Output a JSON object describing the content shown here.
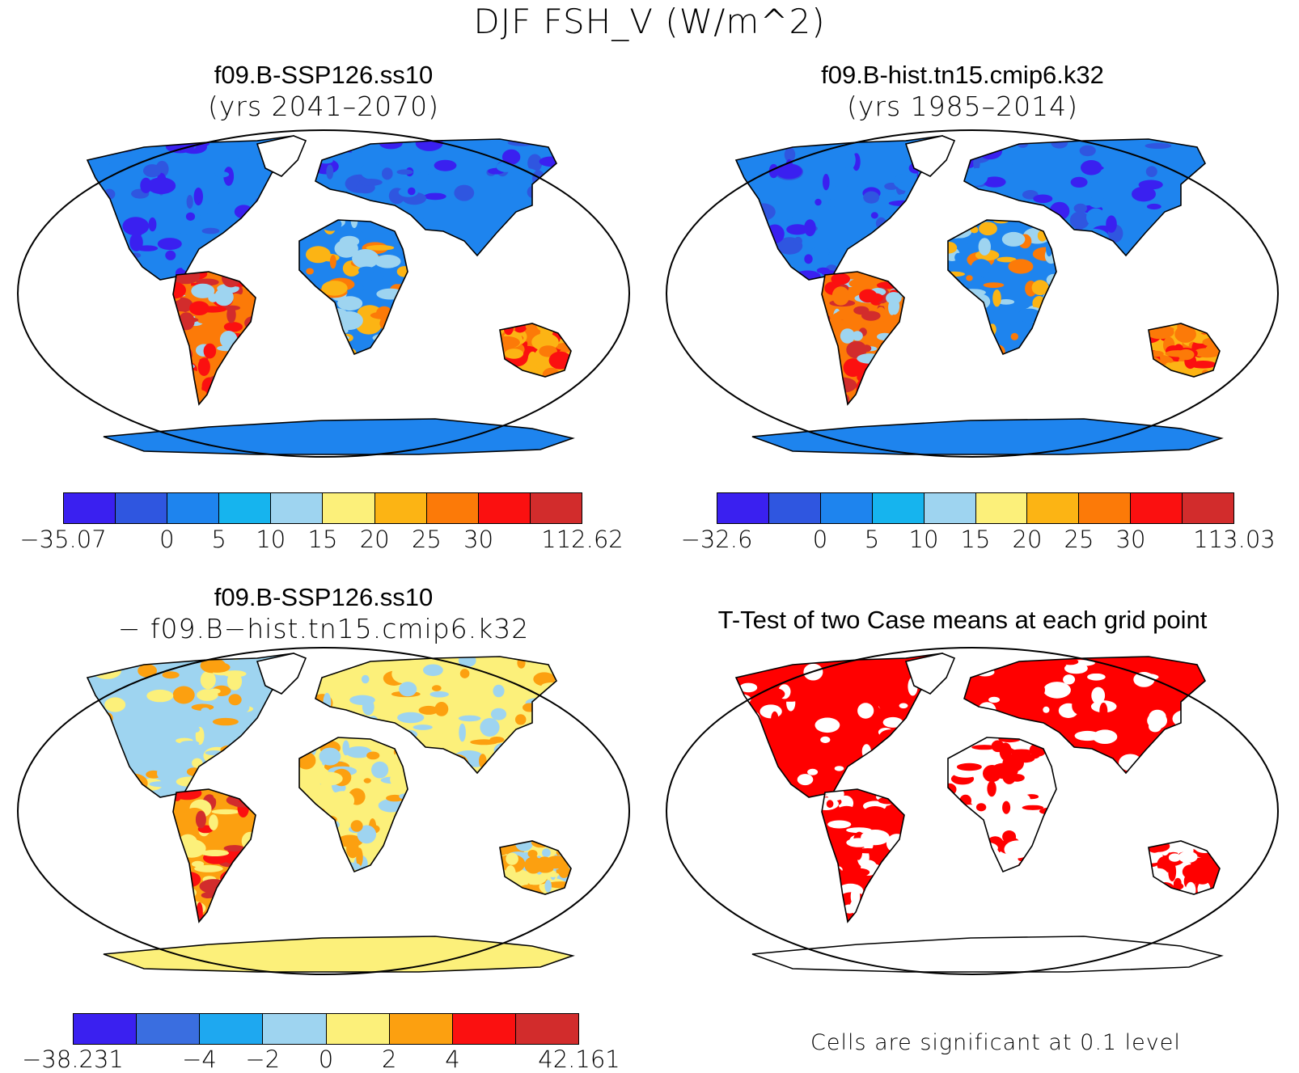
{
  "title": "DJF FSH_V (W/m^2)",
  "panels": [
    {
      "title": "f09.B-SSP126.ss10",
      "subtitle": "(yrs 2041–2070)",
      "kind": "field",
      "colorbar": {
        "ticks": [
          "−35.07",
          "0",
          "5",
          "10",
          "15",
          "20",
          "25",
          "30",
          "112.62"
        ],
        "colors": [
          "#3a20f0",
          "#2f56e0",
          "#1e84ee",
          "#16b4ee",
          "#9ed4f0",
          "#fcf07a",
          "#fcb414",
          "#fc7a08",
          "#fb1010",
          "#d22c2c"
        ]
      }
    },
    {
      "title": "f09.B-hist.tn15.cmip6.k32",
      "subtitle": "(yrs 1985–2014)",
      "kind": "field",
      "colorbar": {
        "ticks": [
          "−32.6",
          "0",
          "5",
          "10",
          "15",
          "20",
          "25",
          "30",
          "113.03"
        ],
        "colors": [
          "#3a20f0",
          "#2f56e0",
          "#1e84ee",
          "#16b4ee",
          "#9ed4f0",
          "#fcf07a",
          "#fcb414",
          "#fc7a08",
          "#fb1010",
          "#d22c2c"
        ]
      }
    },
    {
      "title": "f09.B-SSP126.ss10",
      "subtitle": "− f09.B−hist.tn15.cmip6.k32",
      "kind": "diff",
      "colorbar": {
        "ticks": [
          "−38.231",
          "−4",
          "−2",
          "0",
          "2",
          "4",
          "42.161"
        ],
        "colors": [
          "#3a20f0",
          "#3a6ee0",
          "#1ea8f0",
          "#9ed4f0",
          "#fcf07a",
          "#fca010",
          "#fb1010",
          "#d22c2c"
        ]
      }
    },
    {
      "title": "T-Test of two Case means at each grid point",
      "subtitle": "",
      "kind": "ttest",
      "note": "Cells are significant at 0.1 level",
      "colors": {
        "significant": "#ff0000"
      }
    }
  ]
}
